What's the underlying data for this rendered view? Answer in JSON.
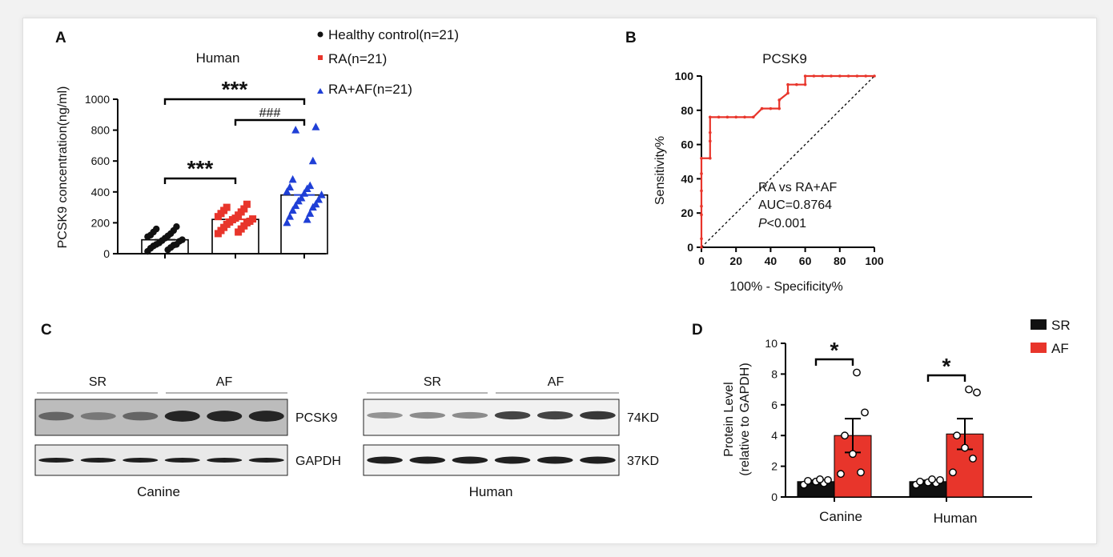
{
  "panels": {
    "a": "A",
    "b": "B",
    "c": "C",
    "d": "D"
  },
  "colors": {
    "healthy": "#111111",
    "ra": "#e8352b",
    "ra_af": "#1f3fd6",
    "sr": "#111111",
    "af": "#e8352b",
    "roc": "#e8352b"
  },
  "chart_data": [
    {
      "id": "A",
      "type": "scatter",
      "title": "Human",
      "ylabel": "PCSK9 concentration(ng/ml)",
      "xlabel": "",
      "ylim": [
        0,
        1000
      ],
      "yticks": [
        "0",
        "200",
        "400",
        "600",
        "800",
        "1000"
      ],
      "legend_position": "top-right",
      "series": [
        {
          "name": "Healthy control(n=21)",
          "marker": "circle",
          "mean": 90,
          "values": [
            15,
            25,
            35,
            40,
            50,
            55,
            60,
            60,
            70,
            80,
            85,
            90,
            100,
            110,
            115,
            120,
            130,
            140,
            150,
            160,
            175
          ]
        },
        {
          "name": "RA(n=21)",
          "marker": "square",
          "mean": 222,
          "values": [
            130,
            140,
            150,
            160,
            170,
            180,
            190,
            200,
            205,
            210,
            220,
            225,
            230,
            240,
            250,
            260,
            270,
            280,
            290,
            300,
            320
          ]
        },
        {
          "name": "RA+AF(n=21)",
          "marker": "triangle",
          "mean": 380,
          "values": [
            200,
            220,
            240,
            260,
            280,
            300,
            310,
            320,
            340,
            350,
            360,
            380,
            390,
            400,
            420,
            430,
            440,
            480,
            600,
            800,
            820
          ]
        }
      ],
      "annotations": [
        {
          "text": "***",
          "from": 0,
          "to": 2
        },
        {
          "text": "###",
          "from": 1,
          "to": 2
        },
        {
          "text": "***",
          "from": 0,
          "to": 1
        }
      ]
    },
    {
      "id": "B",
      "type": "line",
      "title": "PCSK9",
      "xlabel": "100% - Specificity%",
      "ylabel": "Sensitivity%",
      "xlim": [
        0,
        100
      ],
      "ylim": [
        0,
        100
      ],
      "xticks": [
        "0",
        "20",
        "40",
        "60",
        "80",
        "100"
      ],
      "yticks": [
        "0",
        "20",
        "40",
        "60",
        "80",
        "100"
      ],
      "series": [
        {
          "x": [
            0,
            0,
            0,
            0,
            0,
            0,
            0,
            5,
            5,
            5,
            5,
            10,
            15,
            20,
            25,
            30,
            35,
            35,
            40,
            45,
            45,
            50,
            50,
            55,
            60,
            60,
            65,
            70,
            75,
            80,
            85,
            90,
            95,
            100
          ],
          "y": [
            0,
            5,
            19,
            24,
            33,
            43,
            52,
            52,
            62,
            67,
            76,
            76,
            76,
            76,
            76,
            76,
            81,
            81,
            81,
            81,
            86,
            90,
            95,
            95,
            95,
            100,
            100,
            100,
            100,
            100,
            100,
            100,
            100,
            100
          ]
        }
      ],
      "reference_line": {
        "x": [
          0,
          100
        ],
        "y": [
          0,
          100
        ]
      },
      "annotation": {
        "line1": "RA vs RA+AF",
        "line2": "AUC=0.8764",
        "line3_p": "P",
        "line3_rest": "<0.001"
      }
    },
    {
      "id": "D",
      "type": "bar",
      "ylabel_line1": "Protein Level",
      "ylabel_line2": "(relative to GAPDH)",
      "categories": [
        "Canine",
        "Human"
      ],
      "ylim": [
        0,
        10
      ],
      "yticks": [
        "0",
        "2",
        "4",
        "6",
        "8",
        "10"
      ],
      "legend_position": "top-right",
      "series": [
        {
          "name": "SR",
          "values": [
            1.0,
            1.0
          ],
          "sem": [
            0.08,
            0.08
          ],
          "points": [
            [
              0.8,
              0.9,
              1.0,
              1.05,
              1.1,
              1.15
            ],
            [
              0.8,
              0.9,
              0.95,
              1.0,
              1.1,
              1.15
            ]
          ]
        },
        {
          "name": "AF",
          "values": [
            4.0,
            4.1
          ],
          "sem": [
            1.1,
            1.0
          ],
          "points": [
            [
              1.5,
              1.6,
              2.8,
              4.0,
              5.5,
              8.1
            ],
            [
              1.6,
              2.5,
              3.2,
              4.0,
              6.8,
              7.0
            ]
          ]
        }
      ],
      "annotations": [
        {
          "text": "*",
          "category": 0
        },
        {
          "text": "*",
          "category": 1
        }
      ]
    }
  ],
  "western_blot": {
    "canine": {
      "label": "Canine",
      "group1": "SR",
      "group2": "AF",
      "band_row1": [
        0.55,
        0.4,
        0.55,
        0.95,
        0.95,
        0.95
      ],
      "band_row2": [
        1,
        1,
        1,
        1,
        1,
        1
      ]
    },
    "human": {
      "label": "Human",
      "group1": "SR",
      "group2": "AF",
      "band_row1": [
        0.45,
        0.5,
        0.5,
        0.85,
        0.85,
        0.9
      ],
      "band_row2": [
        1,
        1,
        1,
        1,
        1,
        1
      ]
    },
    "label_pcsk9": "PCSK9",
    "label_gapdh": "GAPDH",
    "size_74": "74KD",
    "size_37": "37KD"
  }
}
